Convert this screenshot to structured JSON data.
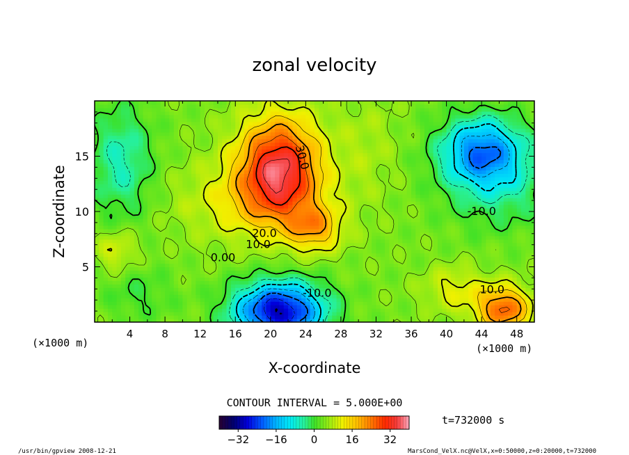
{
  "chart_data": {
    "type": "heatmap",
    "title": "zonal velocity",
    "xlabel": "X-coordinate",
    "ylabel": "Z-coordinate",
    "x_unit_left": "(×1000 m)",
    "x_unit_right": "(×1000 m)",
    "xlim": [
      0,
      50
    ],
    "ylim": [
      0,
      20
    ],
    "x_ticks": [
      4,
      8,
      12,
      16,
      20,
      24,
      28,
      32,
      36,
      40,
      44,
      48
    ],
    "y_ticks": [
      5,
      10,
      15
    ],
    "contour_labels": [
      {
        "text": "30.0",
        "x": 23.2,
        "y": 14.8
      },
      {
        "text": "20.0",
        "x": 19.3,
        "y": 7.7
      },
      {
        "text": "10.0",
        "x": 18.6,
        "y": 6.7
      },
      {
        "text": "0.00",
        "x": 14.6,
        "y": 5.5
      },
      {
        "text": "-10.0",
        "x": 25.3,
        "y": 2.3
      },
      {
        "text": "-10.0",
        "x": 44.0,
        "y": 9.7
      },
      {
        "text": "10.0",
        "x": 45.2,
        "y": 2.6
      }
    ],
    "field_features": [
      {
        "kind": "max",
        "x": 21,
        "y": 14,
        "value": 33
      },
      {
        "kind": "max",
        "x": 25,
        "y": 8.5,
        "value": 27
      },
      {
        "kind": "min",
        "x": 20.5,
        "y": 1.3,
        "value": -30
      },
      {
        "kind": "min",
        "x": 43.5,
        "y": 15.5,
        "value": -18
      },
      {
        "kind": "max",
        "x": 46,
        "y": 1.2,
        "value": 24
      },
      {
        "kind": "max",
        "x": 2.5,
        "y": 6.5,
        "value": 12
      }
    ],
    "colorbar": {
      "min": -40,
      "max": 40,
      "tick_labels": [
        "-32",
        "-16",
        "0",
        "16",
        "32"
      ],
      "tick_values": [
        -32,
        -16,
        0,
        16,
        32
      ]
    },
    "contour_interval_label": "CONTOUR INTERVAL = 5.000E+00",
    "time_label": "t=732000 s"
  },
  "footer": {
    "left": "/usr/bin/gpview   2008-12-21",
    "right": "MarsCond_VelX.nc@VelX,x=0:50000,z=0:20000,t=732000"
  }
}
